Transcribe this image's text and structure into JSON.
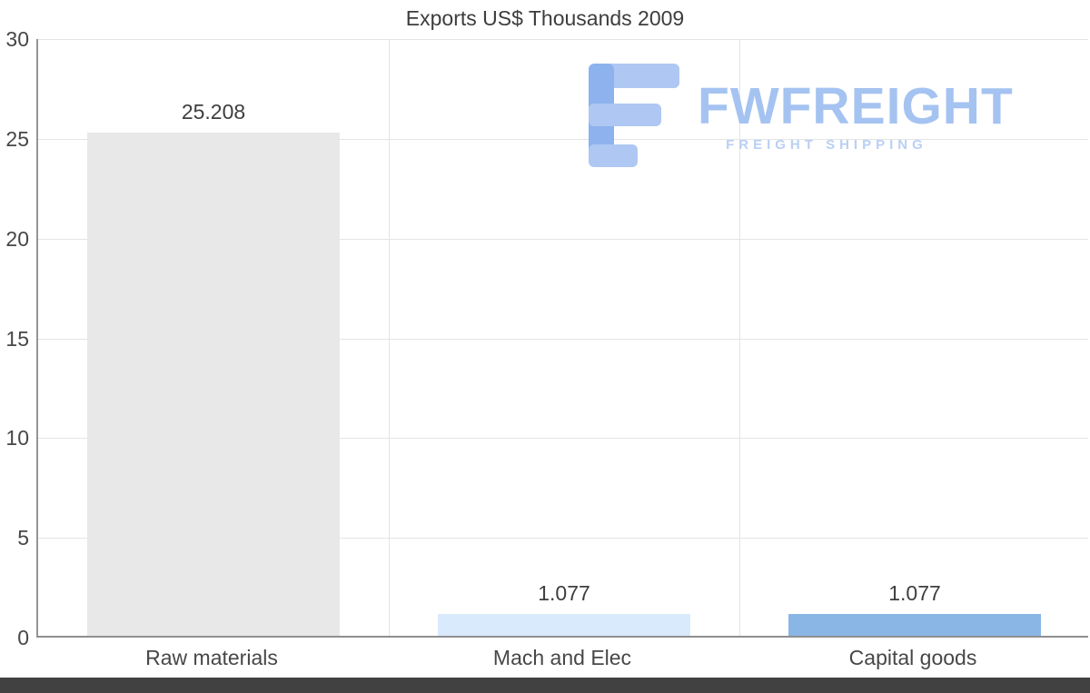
{
  "title": "Exports US$ Thousands 2009",
  "watermark": {
    "brand": "FWFREIGHT",
    "tagline": "FREIGHT SHIPPING",
    "icon_color_dark": "#8db2ee",
    "icon_color_light": "#aec8f3",
    "text_color": "#a5c3f1"
  },
  "chart_data": {
    "type": "bar",
    "title": "Exports US$ Thousands 2009",
    "categories": [
      "Raw materials",
      "Mach and Elec",
      "Capital goods"
    ],
    "values": [
      25.208,
      1.077,
      1.077
    ],
    "value_labels": [
      "25.208",
      "1.077",
      "1.077"
    ],
    "bar_colors": [
      "#e8e8e8",
      "#d9eafd",
      "#8ab6e6"
    ],
    "xlabel": "",
    "ylabel": "",
    "ylim": [
      0,
      30
    ],
    "yticks": [
      0,
      5,
      10,
      15,
      20,
      25,
      30
    ],
    "grid": true,
    "legend": false,
    "gridline_color": "#e4e4e4",
    "axis_color": "#949494"
  }
}
